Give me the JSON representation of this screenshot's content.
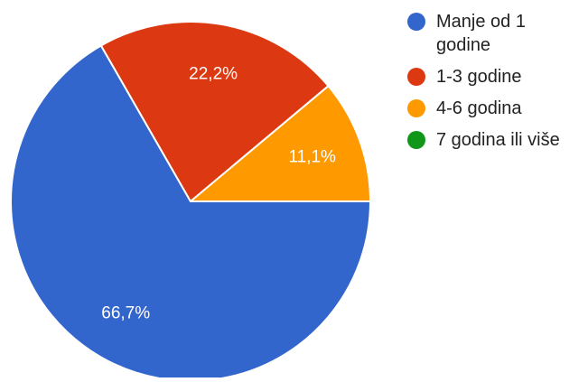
{
  "chart_data": {
    "type": "pie",
    "title": "",
    "slices": [
      {
        "label": "Manje od 1 godine",
        "value": 66.7,
        "display": "66,7%",
        "color": "#3366cc"
      },
      {
        "label": "1-3 godine",
        "value": 22.2,
        "display": "22,2%",
        "color": "#dc3912"
      },
      {
        "label": "4-6 godina",
        "value": 11.1,
        "display": "11,1%",
        "color": "#ff9900"
      },
      {
        "label": "7 godina ili više",
        "value": 0,
        "display": "",
        "color": "#109618"
      }
    ],
    "legend": {
      "position": "right",
      "entries": [
        {
          "lines": [
            "Manje od 1",
            "godine"
          ],
          "color": "#3366cc"
        },
        {
          "lines": [
            "1-3 godine"
          ],
          "color": "#dc3912"
        },
        {
          "lines": [
            "4-6 godina"
          ],
          "color": "#ff9900"
        },
        {
          "lines": [
            "7 godina ili više"
          ],
          "color": "#109618"
        }
      ]
    }
  }
}
